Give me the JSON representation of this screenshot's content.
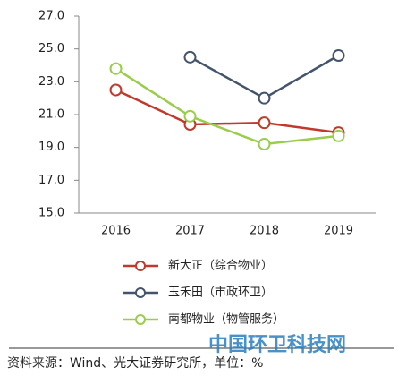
{
  "chart_data": {
    "type": "line",
    "categories": [
      "2016",
      "2017",
      "2018",
      "2019"
    ],
    "series": [
      {
        "name": "新大正（综合物业）",
        "color": "#c0392b",
        "values": [
          22.5,
          20.4,
          20.5,
          19.9
        ]
      },
      {
        "name": "玉禾田（市政环卫）",
        "color": "#44546a",
        "values": [
          null,
          24.5,
          22.0,
          24.6
        ]
      },
      {
        "name": "南都物业（物管服务）",
        "color": "#9acd4b",
        "values": [
          23.8,
          20.9,
          19.2,
          19.7
        ]
      }
    ],
    "ylim": [
      15,
      27
    ],
    "yticks": [
      {
        "value": 15,
        "label": "15.0"
      },
      {
        "value": 17,
        "label": "17.0"
      },
      {
        "value": 19,
        "label": "19.0"
      },
      {
        "value": 21,
        "label": "21.0"
      },
      {
        "value": 23,
        "label": "23.0"
      },
      {
        "value": 25,
        "label": "25.0"
      },
      {
        "value": 27,
        "label": "27.0"
      }
    ],
    "grid": false,
    "source": "资料来源：Wind、光大证券研究所，单位：%",
    "watermark": "中国环卫科技网"
  }
}
